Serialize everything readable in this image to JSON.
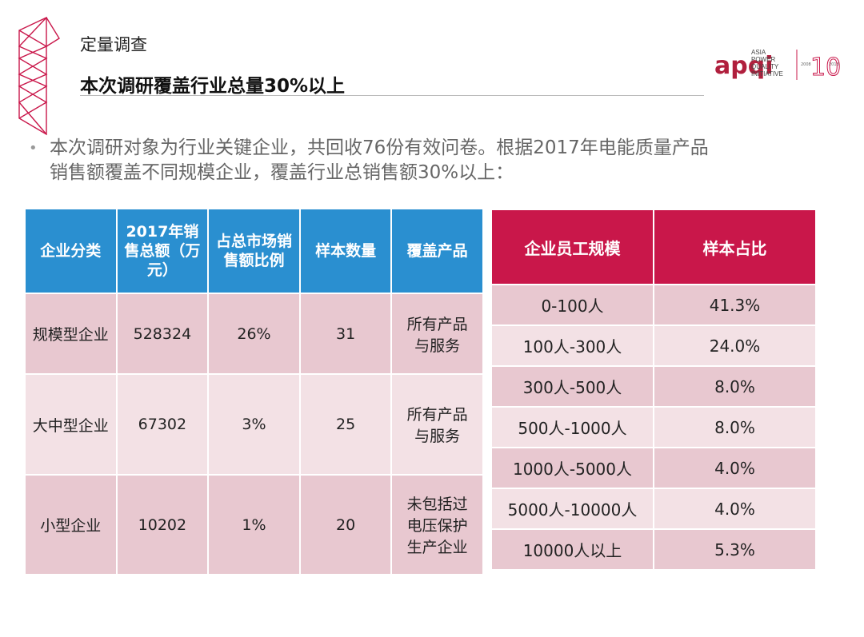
{
  "header": {
    "section": "定量调查",
    "title": "本次调研覆盖行业总量30%以上"
  },
  "logo": {
    "mark": "apqi",
    "lines": [
      "ASIA",
      "POWER",
      "QUALITY",
      "INITIATIVE"
    ],
    "years": [
      "2008",
      "2018"
    ]
  },
  "bullet": {
    "lines": [
      "本次调研对象为行业关键企业，共回收76份有效问卷。根据2017年电能质量产品",
      "销售额覆盖不同规模企业，覆盖行业总销售额30%以上："
    ]
  },
  "table_left": {
    "columns": [
      "企业分类",
      "2017年销售总额（万元）",
      "占总市场销售额比例",
      "样本数量",
      "覆盖产品"
    ],
    "rows": [
      [
        "规模型企业",
        "528324",
        "26%",
        "31",
        "所有产品与服务"
      ],
      [
        "大中型企业",
        "67302",
        "3%",
        "25",
        "所有产品与服务"
      ],
      [
        "小型企业",
        "10202",
        "1%",
        "20",
        "未包括过电压保护生产企业"
      ]
    ]
  },
  "table_right": {
    "columns": [
      "企业员工规模",
      "样本占比"
    ],
    "rows": [
      [
        "0-100人",
        "41.3%"
      ],
      [
        "100人-300人",
        "24.0%"
      ],
      [
        "300人-500人",
        "8.0%"
      ],
      [
        "500人-1000人",
        "8.0%"
      ],
      [
        "1000人-5000人",
        "4.0%"
      ],
      [
        "5000人-10000人",
        "4.0%"
      ],
      [
        "10000人以上",
        "5.3%"
      ]
    ]
  }
}
